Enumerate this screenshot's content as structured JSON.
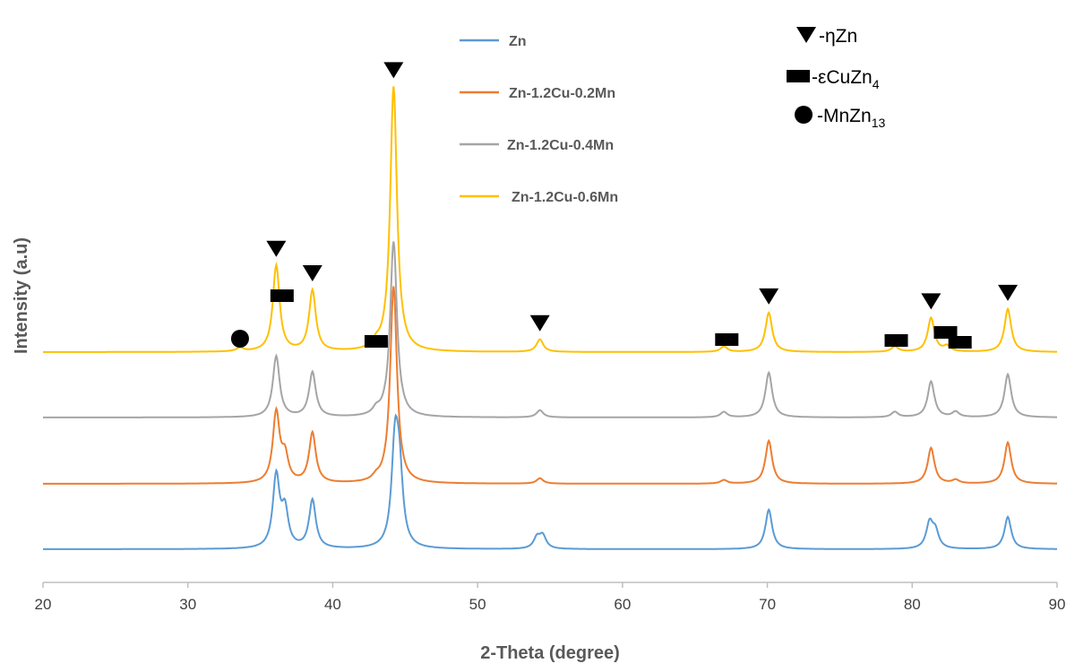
{
  "chart_data": {
    "type": "line",
    "title": "",
    "xlabel": "2-Theta (degree)",
    "ylabel": "Intensity (a.u)",
    "xlim": [
      20,
      90
    ],
    "xticks": [
      20,
      30,
      40,
      50,
      60,
      70,
      80,
      90
    ],
    "yticks_shown": false,
    "grid": false,
    "legend_position": "top-center",
    "series": [
      {
        "name": "Zn",
        "color": "#5B9BD5",
        "baseline": 0,
        "peaks": [
          {
            "x": 36.1,
            "y": 40
          },
          {
            "x": 36.7,
            "y": 20
          },
          {
            "x": 38.6,
            "y": 27
          },
          {
            "x": 44.3,
            "y": 55
          },
          {
            "x": 44.6,
            "y": 38
          },
          {
            "x": 54.1,
            "y": 6
          },
          {
            "x": 54.5,
            "y": 7
          },
          {
            "x": 70.1,
            "y": 22
          },
          {
            "x": 81.2,
            "y": 14
          },
          {
            "x": 81.6,
            "y": 9
          },
          {
            "x": 86.6,
            "y": 18
          }
        ]
      },
      {
        "name": "Zn-1.2Cu-0.2Mn",
        "color": "#ED7D31",
        "baseline": 0,
        "peaks": [
          {
            "x": 36.1,
            "y": 39
          },
          {
            "x": 36.7,
            "y": 14
          },
          {
            "x": 38.6,
            "y": 28
          },
          {
            "x": 43.0,
            "y": 2
          },
          {
            "x": 44.2,
            "y": 110
          },
          {
            "x": 54.3,
            "y": 3
          },
          {
            "x": 67.0,
            "y": 2
          },
          {
            "x": 70.1,
            "y": 24
          },
          {
            "x": 81.3,
            "y": 20
          },
          {
            "x": 83.0,
            "y": 2
          },
          {
            "x": 86.6,
            "y": 23
          }
        ]
      },
      {
        "name": "Zn-1.2Cu-0.4Mn",
        "color": "#A5A5A5",
        "baseline": 0,
        "peaks": [
          {
            "x": 36.1,
            "y": 34
          },
          {
            "x": 38.6,
            "y": 25
          },
          {
            "x": 43.0,
            "y": 3
          },
          {
            "x": 44.2,
            "y": 98
          },
          {
            "x": 54.3,
            "y": 4
          },
          {
            "x": 67.0,
            "y": 3
          },
          {
            "x": 70.1,
            "y": 25
          },
          {
            "x": 78.8,
            "y": 3
          },
          {
            "x": 81.3,
            "y": 20
          },
          {
            "x": 83.0,
            "y": 3
          },
          {
            "x": 86.6,
            "y": 24
          }
        ]
      },
      {
        "name": "Zn-1.2Cu-0.6Mn",
        "color": "#FFC000",
        "baseline": 0,
        "peaks": [
          {
            "x": 33.6,
            "y": 2
          },
          {
            "x": 36.1,
            "y": 48
          },
          {
            "x": 38.6,
            "y": 34
          },
          {
            "x": 43.0,
            "y": 3
          },
          {
            "x": 44.2,
            "y": 148
          },
          {
            "x": 54.3,
            "y": 7
          },
          {
            "x": 67.0,
            "y": 3
          },
          {
            "x": 70.1,
            "y": 22
          },
          {
            "x": 78.8,
            "y": 3
          },
          {
            "x": 81.3,
            "y": 19
          },
          {
            "x": 82.4,
            "y": 3
          },
          {
            "x": 86.6,
            "y": 24
          }
        ]
      }
    ],
    "phase_legend": [
      {
        "symbol": "triangle-down",
        "label": "-ηZn",
        "sub": ""
      },
      {
        "symbol": "rectangle",
        "label": "-εCuZn",
        "sub": "4"
      },
      {
        "symbol": "circle",
        "label": "-MnZn",
        "sub": "13"
      }
    ],
    "phase_markers": [
      {
        "symbol": "triangle-down",
        "x": 36.1
      },
      {
        "symbol": "triangle-down",
        "x": 38.6
      },
      {
        "symbol": "triangle-down",
        "x": 44.2
      },
      {
        "symbol": "triangle-down",
        "x": 54.3
      },
      {
        "symbol": "triangle-down",
        "x": 70.1
      },
      {
        "symbol": "triangle-down",
        "x": 81.3
      },
      {
        "symbol": "triangle-down",
        "x": 86.6
      },
      {
        "symbol": "rectangle",
        "x": 36.5
      },
      {
        "symbol": "rectangle",
        "x": 43.0
      },
      {
        "symbol": "rectangle",
        "x": 67.2
      },
      {
        "symbol": "rectangle",
        "x": 78.9
      },
      {
        "symbol": "rectangle",
        "x": 82.3
      },
      {
        "symbol": "rectangle",
        "x": 83.3
      },
      {
        "symbol": "circle",
        "x": 33.6
      }
    ]
  }
}
